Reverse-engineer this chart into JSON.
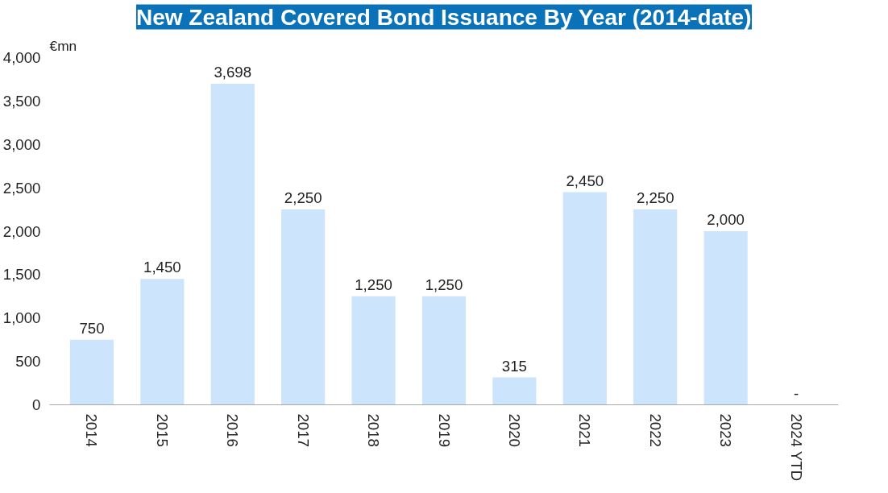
{
  "chart_data": {
    "type": "bar",
    "title": "New Zealand Covered Bond Issuance By Year (2014-date)",
    "ylabel": "€mn",
    "categories": [
      "2014",
      "2015",
      "2016",
      "2017",
      "2018",
      "2019",
      "2020",
      "2021",
      "2022",
      "2023",
      "2024 YTD"
    ],
    "values": [
      750,
      1450,
      3698,
      2250,
      1250,
      1250,
      315,
      2450,
      2250,
      2000,
      0
    ],
    "value_labels": [
      "750",
      "1,450",
      "3,698",
      "2,250",
      "1,250",
      "1,250",
      "315",
      "2,450",
      "2,250",
      "2,000",
      "-"
    ],
    "color": "#cce4fc",
    "ylim": [
      0,
      4000
    ],
    "yticks": [
      {
        "value": 0,
        "label": "0"
      },
      {
        "value": 500,
        "label": "500"
      },
      {
        "value": 1000,
        "label": "1,000"
      },
      {
        "value": 1500,
        "label": "1,500"
      },
      {
        "value": 2000,
        "label": "2,000"
      },
      {
        "value": 2500,
        "label": "2,500"
      },
      {
        "value": 3000,
        "label": "3,000"
      },
      {
        "value": 3500,
        "label": "3,500"
      },
      {
        "value": 4000,
        "label": "4,000"
      }
    ],
    "grid": false
  }
}
